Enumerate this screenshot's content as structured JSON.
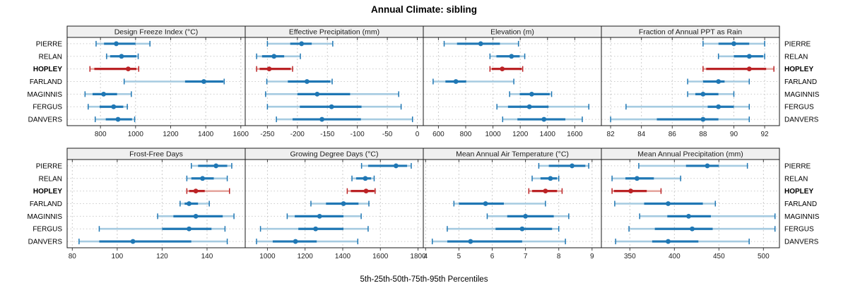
{
  "title": "Annual Climate: sibling",
  "xlabel": "5th-25th-50th-75th-95th Percentiles",
  "chart_data": {
    "type": "dot-whisker-trellis",
    "percentile_levels": [
      5,
      25,
      50,
      75,
      95
    ],
    "sites": [
      "PIERRE",
      "RELAN",
      "HOPLEY",
      "FARLAND",
      "MAGINNIS",
      "FERGUS",
      "DANVERS"
    ],
    "highlight_site": "HOPLEY",
    "legend_position": "none",
    "grid": "dotted",
    "colors": {
      "series": "#1f77b4",
      "series_light": "#a6cbe1",
      "highlight": "#bb2326",
      "highlight_light": "#e5a69f",
      "grid": "#cccccc",
      "header_bg": "#f0f0f0",
      "border": "#1a1a1a",
      "tick_text": "#222222"
    },
    "panels": [
      {
        "title": "Design Freeze Index (°C)",
        "ticks": [
          800,
          1000,
          1200,
          1400,
          1600
        ],
        "domain": [
          610,
          1625
        ],
        "values": {
          "PIERRE": [
            775,
            820,
            890,
            1000,
            1082
          ],
          "RELAN": [
            835,
            855,
            920,
            1005,
            1015
          ],
          "HOPLEY": [
            740,
            765,
            958,
            1005,
            1018
          ],
          "FARLAND": [
            935,
            1282,
            1389,
            1500,
            1505
          ],
          "MAGINNIS": [
            712,
            755,
            818,
            895,
            976
          ],
          "FERGUS": [
            730,
            795,
            875,
            930,
            953
          ],
          "DANVERS": [
            770,
            830,
            900,
            980,
            995
          ]
        }
      },
      {
        "title": "Effective Precipitation (mm)",
        "ticks": [
          -250,
          -200,
          -150,
          -100,
          -50,
          0
        ],
        "domain": [
          -287,
          10
        ],
        "values": {
          "PIERRE": [
            -250,
            -212,
            -193,
            -176,
            -141
          ],
          "RELAN": [
            -268,
            -259,
            -239,
            -222,
            -195
          ],
          "HOPLEY": [
            -268,
            -263,
            -247,
            -211,
            -208
          ],
          "FARLAND": [
            -251,
            -216,
            -184,
            -145,
            -142
          ],
          "MAGINNIS": [
            -253,
            -200,
            -167,
            -112,
            -31
          ],
          "FERGUS": [
            -250,
            -196,
            -143,
            -93,
            -27
          ],
          "DANVERS": [
            -235,
            -208,
            -159,
            -94,
            -8
          ]
        }
      },
      {
        "title": "Elevation (m)",
        "ticks": [
          600,
          800,
          1000,
          1200,
          1400,
          1600
        ],
        "domain": [
          489,
          1795
        ],
        "values": {
          "PIERRE": [
            642,
            736,
            910,
            1051,
            1187
          ],
          "RELAN": [
            978,
            1025,
            1136,
            1196,
            1233
          ],
          "HOPLEY": [
            978,
            991,
            1068,
            1211,
            1218
          ],
          "FARLAND": [
            561,
            651,
            728,
            804,
            1153
          ],
          "MAGINNIS": [
            1122,
            1196,
            1284,
            1416,
            1430
          ],
          "FERGUS": [
            1029,
            1110,
            1267,
            1408,
            1703
          ],
          "DANVERS": [
            1071,
            1179,
            1374,
            1531,
            1655
          ]
        }
      },
      {
        "title": "Fraction of Annual PPT as Rain",
        "ticks": [
          82,
          84,
          86,
          88,
          90,
          92
        ],
        "domain": [
          81.4,
          92.96
        ],
        "values": {
          "PIERRE": [
            88,
            89,
            90,
            91,
            92
          ],
          "RELAN": [
            89,
            90,
            91,
            91.9,
            92
          ],
          "HOPLEY": [
            88,
            88.2,
            91,
            92.1,
            92.6
          ],
          "FARLAND": [
            87,
            88,
            89,
            89.4,
            91
          ],
          "MAGINNIS": [
            87,
            87.5,
            88,
            89,
            90
          ],
          "FERGUS": [
            83,
            88.3,
            89,
            90,
            91
          ],
          "DANVERS": [
            82,
            85,
            88,
            89,
            91
          ]
        }
      },
      {
        "title": "Frost-Free Days",
        "ticks": [
          80,
          100,
          120,
          140
        ],
        "domain": [
          77.7,
          157
        ],
        "values": {
          "PIERRE": [
            133,
            136,
            144,
            149,
            151
          ],
          "RELAN": [
            131,
            133,
            138,
            143,
            149
          ],
          "HOPLEY": [
            131,
            132,
            135,
            139,
            150
          ],
          "FARLAND": [
            128,
            130,
            132,
            136,
            141
          ],
          "MAGINNIS": [
            118,
            125,
            135,
            147,
            152
          ],
          "FERGUS": [
            92,
            120,
            132,
            142,
            148
          ],
          "DANVERS": [
            83,
            92,
            107,
            133,
            149
          ]
        }
      },
      {
        "title": "Growing Degree Days (°C)",
        "ticks": [
          1000,
          1200,
          1400,
          1600,
          1800
        ],
        "domain": [
          882,
          1828
        ],
        "values": {
          "PIERRE": [
            1500,
            1535,
            1683,
            1742,
            1764
          ],
          "RELAN": [
            1449,
            1471,
            1520,
            1551,
            1567
          ],
          "HOPLEY": [
            1424,
            1443,
            1524,
            1568,
            1572
          ],
          "FARLAND": [
            1231,
            1311,
            1404,
            1484,
            1539
          ],
          "MAGINNIS": [
            1105,
            1145,
            1277,
            1404,
            1498
          ],
          "FERGUS": [
            963,
            1164,
            1256,
            1404,
            1535
          ],
          "DANVERS": [
            942,
            1028,
            1149,
            1262,
            1480
          ]
        }
      },
      {
        "title": "Mean Annual Air Temperature (°C)",
        "ticks": [
          4,
          5,
          6,
          7,
          8,
          9
        ],
        "domain": [
          3.93,
          9.28
        ],
        "values": {
          "PIERRE": [
            7.4,
            7.7,
            8.4,
            8.8,
            8.9
          ],
          "RELAN": [
            7.2,
            7.45,
            7.75,
            7.95,
            8.0
          ],
          "HOPLEY": [
            7.1,
            7.2,
            7.6,
            7.95,
            8.1
          ],
          "FARLAND": [
            4.85,
            5.0,
            5.8,
            6.35,
            7.6
          ],
          "MAGINNIS": [
            5.85,
            6.45,
            7.0,
            7.85,
            8.3
          ],
          "FERGUS": [
            4.65,
            6.1,
            6.9,
            7.8,
            8.0
          ],
          "DANVERS": [
            4.2,
            4.65,
            5.35,
            6.9,
            8.2
          ]
        }
      },
      {
        "title": "Mean Annual Precipitation (mm)",
        "ticks": [
          350,
          400,
          450,
          500
        ],
        "domain": [
          318,
          518
        ],
        "values": {
          "PIERRE": [
            360,
            413,
            437,
            450,
            482
          ],
          "RELAN": [
            330,
            345,
            358,
            377,
            407
          ],
          "HOPLEY": [
            330,
            332,
            351,
            369,
            385
          ],
          "FARLAND": [
            333,
            366,
            393,
            432,
            446
          ],
          "MAGINNIS": [
            361,
            392,
            416,
            441,
            513
          ],
          "FERGUS": [
            349,
            378,
            420,
            443,
            513
          ],
          "DANVERS": [
            334,
            375,
            393,
            427,
            484
          ]
        }
      }
    ]
  }
}
